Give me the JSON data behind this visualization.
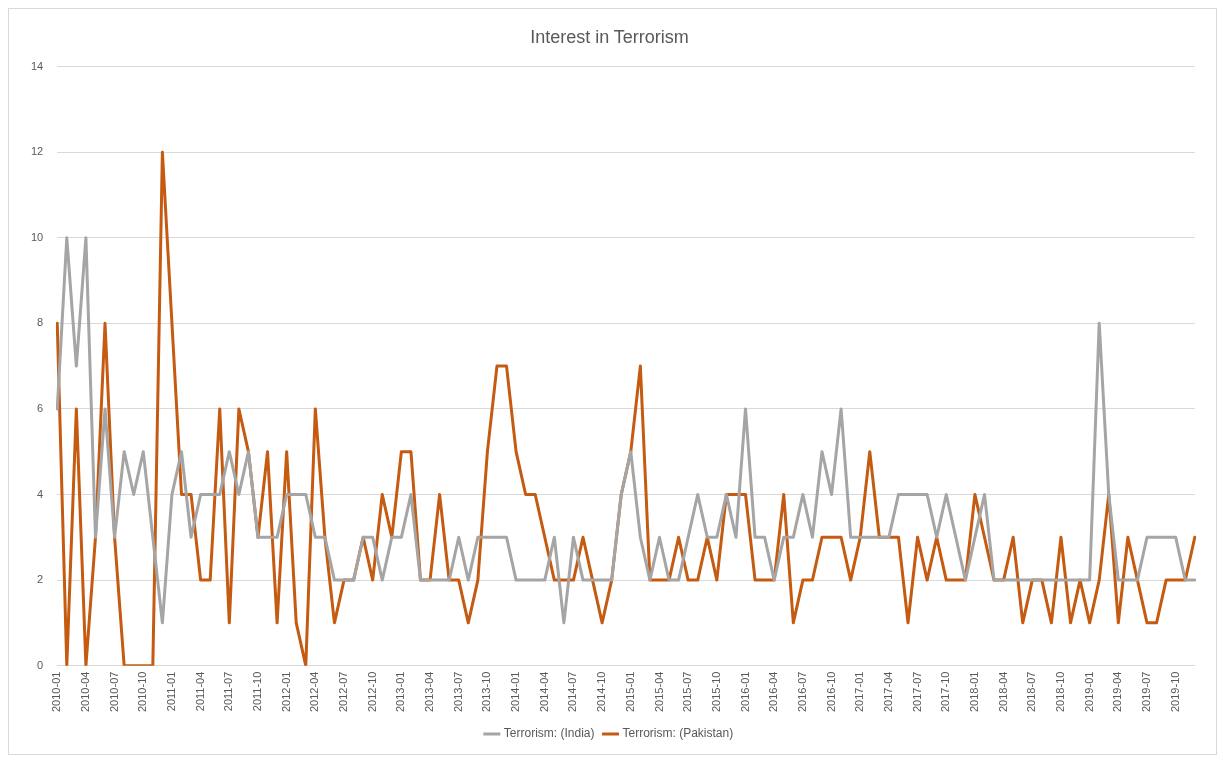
{
  "chart_data": {
    "type": "line",
    "title": "Interest in Terrorism",
    "categories": [
      "2010-01",
      null,
      null,
      "2010-04",
      null,
      null,
      "2010-07",
      null,
      null,
      "2010-10",
      null,
      null,
      "2011-01",
      null,
      null,
      "2011-04",
      null,
      null,
      "2011-07",
      null,
      null,
      "2011-10",
      null,
      null,
      "2012-01",
      null,
      null,
      "2012-04",
      null,
      null,
      "2012-07",
      null,
      null,
      "2012-10",
      null,
      null,
      "2013-01",
      null,
      null,
      "2013-04",
      null,
      null,
      "2013-07",
      null,
      null,
      "2013-10",
      null,
      null,
      "2014-01",
      null,
      null,
      "2014-04",
      null,
      null,
      "2014-07",
      null,
      null,
      "2014-10",
      null,
      null,
      "2015-01",
      null,
      null,
      "2015-04",
      null,
      null,
      "2015-07",
      null,
      null,
      "2015-10",
      null,
      null,
      "2016-01",
      null,
      null,
      "2016-04",
      null,
      null,
      "2016-07",
      null,
      null,
      "2016-10",
      null,
      null,
      "2017-01",
      null,
      null,
      "2017-04",
      null,
      null,
      "2017-07",
      null,
      null,
      "2017-10",
      null,
      null,
      "2018-01",
      null,
      null,
      "2018-04",
      null,
      null,
      "2018-07",
      null,
      null,
      "2018-10",
      null,
      null,
      "2019-01",
      null,
      null,
      "2019-04",
      null,
      null,
      "2019-07",
      null,
      null,
      "2019-10",
      null,
      null
    ],
    "series": [
      {
        "name": "Terrorism: (India)",
        "color": "#a5a5a5",
        "values": [
          6,
          10,
          7,
          10,
          3,
          6,
          3,
          5,
          4,
          5,
          3,
          1,
          4,
          5,
          3,
          4,
          4,
          4,
          5,
          4,
          5,
          3,
          3,
          3,
          4,
          4,
          4,
          3,
          3,
          2,
          2,
          2,
          3,
          3,
          2,
          3,
          3,
          4,
          2,
          2,
          2,
          2,
          3,
          2,
          3,
          3,
          3,
          3,
          2,
          2,
          2,
          2,
          3,
          1,
          3,
          2,
          2,
          2,
          2,
          4,
          5,
          3,
          2,
          3,
          2,
          2,
          3,
          4,
          3,
          3,
          4,
          3,
          6,
          3,
          3,
          2,
          3,
          3,
          4,
          3,
          5,
          4,
          6,
          3,
          3,
          3,
          3,
          3,
          4,
          4,
          4,
          4,
          3,
          4,
          3,
          2,
          3,
          4,
          2,
          2,
          2,
          2,
          2,
          2,
          2,
          2,
          2,
          2,
          2,
          8,
          4,
          2,
          2,
          2,
          3,
          3,
          3,
          3,
          2,
          2
        ]
      },
      {
        "name": "Terrorism: (Pakistan)",
        "color": "#c55a11",
        "values": [
          8,
          0,
          6,
          0,
          3,
          8,
          3,
          0,
          0,
          0,
          0,
          12,
          8,
          4,
          4,
          2,
          2,
          6,
          1,
          6,
          5,
          3,
          5,
          1,
          5,
          1,
          0,
          6,
          3,
          1,
          2,
          2,
          3,
          2,
          4,
          3,
          5,
          5,
          2,
          2,
          4,
          2,
          2,
          1,
          2,
          5,
          7,
          7,
          5,
          4,
          4,
          3,
          2,
          2,
          2,
          3,
          2,
          1,
          2,
          4,
          5,
          7,
          2,
          2,
          2,
          3,
          2,
          2,
          3,
          2,
          4,
          4,
          4,
          2,
          2,
          2,
          4,
          1,
          2,
          2,
          3,
          3,
          3,
          2,
          3,
          5,
          3,
          3,
          3,
          1,
          3,
          2,
          3,
          2,
          2,
          2,
          4,
          3,
          2,
          2,
          3,
          1,
          2,
          2,
          1,
          3,
          1,
          2,
          1,
          2,
          4,
          1,
          3,
          2,
          1,
          1,
          2,
          2,
          2,
          3
        ]
      }
    ],
    "ylim": [
      0,
      14
    ],
    "yticks": [
      0,
      2,
      4,
      6,
      8,
      10,
      12,
      14
    ],
    "grid": "y",
    "legend": "bottom",
    "line_style": "solid"
  }
}
